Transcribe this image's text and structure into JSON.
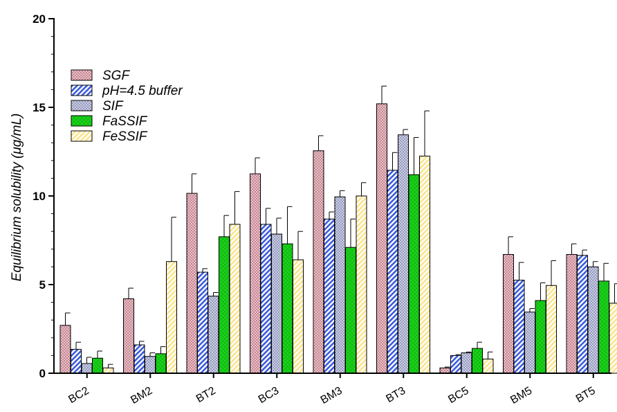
{
  "chart_data": {
    "type": "bar",
    "ylabel": "Equilibrium solubility (μg/mL)",
    "ylim": [
      0,
      20
    ],
    "yticks": [
      "0",
      "5",
      "10",
      "15",
      "20"
    ],
    "grid": false,
    "legend_position": "top-left",
    "categories": [
      "BC2",
      "BM2",
      "BT2",
      "BC3",
      "BM3",
      "BT3",
      "BC5",
      "BM5",
      "BT5"
    ],
    "series": [
      {
        "name": "SGF",
        "color": "#f7b8c4",
        "pattern": "dots",
        "values": [
          2.7,
          4.2,
          10.15,
          11.25,
          12.55,
          15.2,
          0.3,
          6.7,
          6.7
        ],
        "errors": [
          0.7,
          0.6,
          1.1,
          0.9,
          0.85,
          1.0,
          0.05,
          1.0,
          0.6
        ]
      },
      {
        "name": "pH=4.5 buffer",
        "color": "#3b5bdb",
        "pattern": "hatch",
        "values": [
          1.35,
          1.6,
          5.7,
          8.4,
          8.7,
          11.45,
          1.0,
          5.25,
          6.65
        ],
        "errors": [
          0.4,
          0.2,
          0.2,
          0.9,
          0.4,
          1.0,
          0.05,
          1.0,
          0.3
        ]
      },
      {
        "name": "SIF",
        "color": "#c8cdf0",
        "pattern": "dots",
        "values": [
          0.55,
          0.95,
          4.35,
          7.85,
          9.95,
          13.45,
          1.15,
          3.45,
          6.0
        ],
        "errors": [
          0.35,
          0.2,
          0.2,
          0.9,
          0.35,
          0.3,
          0.05,
          0.2,
          0.3
        ]
      },
      {
        "name": "FaSSIF",
        "color": "#19d419",
        "pattern": "grid",
        "values": [
          0.85,
          1.1,
          7.7,
          7.3,
          7.1,
          11.2,
          1.4,
          4.1,
          5.2
        ],
        "errors": [
          0.4,
          0.4,
          1.2,
          2.1,
          1.6,
          2.1,
          0.35,
          1.0,
          1.0
        ]
      },
      {
        "name": "FeSSIF",
        "color": "#fbe48c",
        "pattern": "hatch",
        "values": [
          0.3,
          6.3,
          8.4,
          6.4,
          10.0,
          12.25,
          0.8,
          4.95,
          3.95
        ],
        "errors": [
          0.2,
          2.5,
          1.85,
          1.6,
          0.75,
          2.55,
          0.4,
          1.4,
          1.1
        ]
      }
    ]
  }
}
